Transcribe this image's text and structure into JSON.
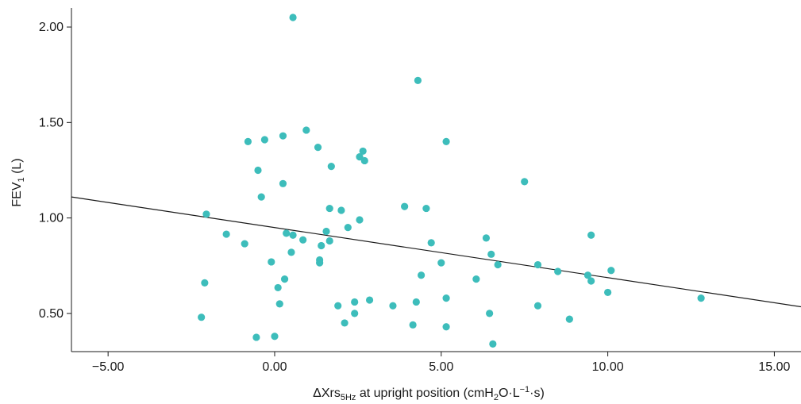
{
  "chart_data": {
    "type": "scatter",
    "title": "",
    "xlabel_parts": {
      "main": "ΔXrs",
      "sub": "5Hz",
      "rest_pre": " at upright position (cmH",
      "sub2": "2",
      "rest_mid": "O·L",
      "sup": "−1",
      "rest_post": "·s)"
    },
    "ylabel_parts": {
      "main": "FEV",
      "sub": "1",
      "rest": " (L)"
    },
    "xlim": [
      -6.1,
      15.8
    ],
    "ylim": [
      0.3,
      2.1
    ],
    "xticks": [
      -5,
      0,
      5,
      10,
      15
    ],
    "xtick_labels": [
      "−5.00",
      "0.00",
      "5.00",
      "10.00",
      "15.00"
    ],
    "yticks": [
      0.5,
      1.0,
      1.5,
      2.0
    ],
    "ytick_labels": [
      "0.50",
      "1.00",
      "1.50",
      "2.00"
    ],
    "point_color": "#3dbdbb",
    "line_color": "#1a1a1a",
    "regression_line": {
      "x": [
        -6.1,
        15.8
      ],
      "y": [
        1.11,
        0.535
      ]
    },
    "points": [
      {
        "x": 0.55,
        "y": 2.05
      },
      {
        "x": 4.3,
        "y": 1.72
      },
      {
        "x": -0.8,
        "y": 1.4
      },
      {
        "x": -0.3,
        "y": 1.41
      },
      {
        "x": 0.25,
        "y": 1.43
      },
      {
        "x": 0.95,
        "y": 1.46
      },
      {
        "x": 1.3,
        "y": 1.37
      },
      {
        "x": 5.15,
        "y": 1.4
      },
      {
        "x": 2.65,
        "y": 1.35
      },
      {
        "x": 2.55,
        "y": 1.32
      },
      {
        "x": 2.7,
        "y": 1.3
      },
      {
        "x": 1.7,
        "y": 1.27
      },
      {
        "x": -0.5,
        "y": 1.25
      },
      {
        "x": 7.5,
        "y": 1.19
      },
      {
        "x": 0.25,
        "y": 1.18
      },
      {
        "x": -0.4,
        "y": 1.11
      },
      {
        "x": 3.9,
        "y": 1.06
      },
      {
        "x": 4.55,
        "y": 1.05
      },
      {
        "x": 1.65,
        "y": 1.05
      },
      {
        "x": 2.0,
        "y": 1.04
      },
      {
        "x": -2.05,
        "y": 1.02
      },
      {
        "x": 2.55,
        "y": 0.99
      },
      {
        "x": 2.2,
        "y": 0.95
      },
      {
        "x": 1.55,
        "y": 0.93
      },
      {
        "x": 0.35,
        "y": 0.92
      },
      {
        "x": -1.45,
        "y": 0.915
      },
      {
        "x": 0.55,
        "y": 0.91
      },
      {
        "x": 9.5,
        "y": 0.91
      },
      {
        "x": 6.35,
        "y": 0.895
      },
      {
        "x": 0.85,
        "y": 0.885
      },
      {
        "x": 1.65,
        "y": 0.88
      },
      {
        "x": 4.7,
        "y": 0.87
      },
      {
        "x": -0.9,
        "y": 0.865
      },
      {
        "x": 1.4,
        "y": 0.855
      },
      {
        "x": 0.5,
        "y": 0.82
      },
      {
        "x": 6.5,
        "y": 0.81
      },
      {
        "x": 1.35,
        "y": 0.78
      },
      {
        "x": -0.1,
        "y": 0.77
      },
      {
        "x": 1.35,
        "y": 0.765
      },
      {
        "x": 5.0,
        "y": 0.765
      },
      {
        "x": 6.7,
        "y": 0.755
      },
      {
        "x": 7.9,
        "y": 0.755
      },
      {
        "x": 10.1,
        "y": 0.725
      },
      {
        "x": 8.5,
        "y": 0.72
      },
      {
        "x": 9.4,
        "y": 0.7
      },
      {
        "x": 4.4,
        "y": 0.7
      },
      {
        "x": 0.3,
        "y": 0.68
      },
      {
        "x": 6.05,
        "y": 0.68
      },
      {
        "x": 9.5,
        "y": 0.67
      },
      {
        "x": -2.1,
        "y": 0.66
      },
      {
        "x": 0.1,
        "y": 0.635
      },
      {
        "x": 10.0,
        "y": 0.61
      },
      {
        "x": 12.8,
        "y": 0.58
      },
      {
        "x": 5.15,
        "y": 0.58
      },
      {
        "x": 2.85,
        "y": 0.57
      },
      {
        "x": 2.4,
        "y": 0.56
      },
      {
        "x": 4.25,
        "y": 0.56
      },
      {
        "x": 0.15,
        "y": 0.55
      },
      {
        "x": 7.9,
        "y": 0.54
      },
      {
        "x": 3.55,
        "y": 0.54
      },
      {
        "x": 1.9,
        "y": 0.54
      },
      {
        "x": 6.45,
        "y": 0.5
      },
      {
        "x": 2.4,
        "y": 0.5
      },
      {
        "x": -2.2,
        "y": 0.48
      },
      {
        "x": 8.85,
        "y": 0.47
      },
      {
        "x": 2.1,
        "y": 0.45
      },
      {
        "x": 4.15,
        "y": 0.44
      },
      {
        "x": 5.15,
        "y": 0.43
      },
      {
        "x": 0.0,
        "y": 0.38
      },
      {
        "x": -0.55,
        "y": 0.375
      },
      {
        "x": 6.55,
        "y": 0.34
      }
    ]
  }
}
